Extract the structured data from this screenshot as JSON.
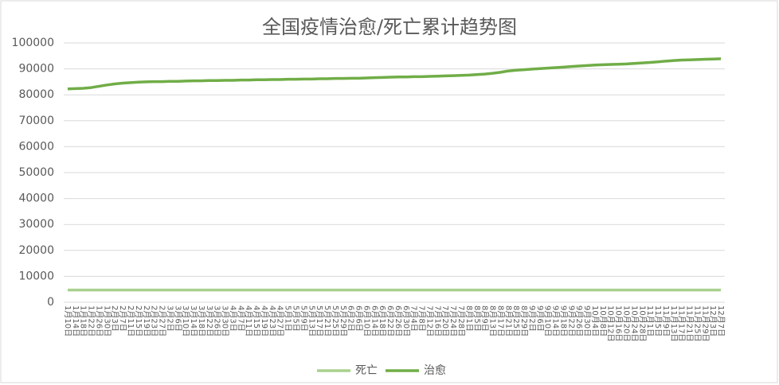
{
  "chart_data": {
    "type": "line",
    "title": "全国疫情治愈/死亡累计趋势图",
    "categories": [
      "1月10日",
      "1月14日",
      "1月18日",
      "1月22日",
      "1月26日",
      "1月30日",
      "2月3日",
      "2月7日",
      "2月11日",
      "2月15日",
      "2月19日",
      "2月23日",
      "2月27日",
      "3月2日",
      "3月6日",
      "3月10日",
      "3月14日",
      "3月18日",
      "3月22日",
      "3月26日",
      "3月30日",
      "4月3日",
      "4月7日",
      "4月11日",
      "4月15日",
      "4月19日",
      "4月23日",
      "4月27日",
      "5月1日",
      "5月5日",
      "5月9日",
      "5月13日",
      "5月17日",
      "5月21日",
      "5月25日",
      "5月29日",
      "6月2日",
      "6月6日",
      "6月10日",
      "6月14日",
      "6月18日",
      "6月22日",
      "6月26日",
      "6月30日",
      "7月4日",
      "7月8日",
      "7月12日",
      "7月16日",
      "7月20日",
      "7月24日",
      "7月28日",
      "8月1日",
      "8月5日",
      "8月9日",
      "8月13日",
      "8月17日",
      "8月21日",
      "8月25日",
      "8月29日",
      "9月2日",
      "9月6日",
      "9月10日",
      "9月14日",
      "9月18日",
      "9月22日",
      "9月26日",
      "9月30日",
      "10月4日",
      "10月8日",
      "10月12日",
      "10月16日",
      "10月20日",
      "10月24日",
      "10月28日",
      "11月1日",
      "11月5日",
      "11月9日",
      "11月13日",
      "11月17日",
      "11月21日",
      "11月25日",
      "11月29日",
      "12月3日",
      "12月7日"
    ],
    "series": [
      {
        "name": "死亡",
        "color": "#a9d18e",
        "values": [
          4700,
          4700,
          4700,
          4700,
          4700,
          4700,
          4700,
          4700,
          4700,
          4700,
          4700,
          4700,
          4700,
          4700,
          4700,
          4700,
          4700,
          4700,
          4700,
          4700,
          4700,
          4700,
          4700,
          4700,
          4700,
          4700,
          4700,
          4700,
          4700,
          4700,
          4700,
          4700,
          4700,
          4700,
          4700,
          4700,
          4700,
          4700,
          4700,
          4700,
          4700,
          4700,
          4700,
          4700,
          4700,
          4700,
          4700,
          4700,
          4700,
          4700,
          4700,
          4700,
          4700,
          4700,
          4700,
          4700,
          4700,
          4700,
          4700,
          4700,
          4700,
          4700,
          4700,
          4700,
          4700,
          4700,
          4700,
          4700,
          4700,
          4700,
          4700,
          4700,
          4700,
          4700,
          4700,
          4700,
          4700,
          4700,
          4700,
          4700,
          4700,
          4700,
          4700,
          4700
        ]
      },
      {
        "name": "治愈",
        "color": "#70ad47",
        "values": [
          82300,
          82400,
          82500,
          82800,
          83300,
          83800,
          84200,
          84500,
          84700,
          84900,
          85000,
          85100,
          85100,
          85200,
          85200,
          85300,
          85400,
          85400,
          85500,
          85500,
          85600,
          85600,
          85700,
          85700,
          85800,
          85800,
          85900,
          85900,
          86000,
          86000,
          86100,
          86100,
          86200,
          86200,
          86300,
          86300,
          86400,
          86400,
          86500,
          86600,
          86700,
          86800,
          86900,
          86900,
          87000,
          87000,
          87100,
          87200,
          87300,
          87400,
          87500,
          87600,
          87800,
          88000,
          88300,
          88700,
          89200,
          89500,
          89700,
          89900,
          90100,
          90300,
          90500,
          90700,
          90900,
          91100,
          91300,
          91500,
          91600,
          91700,
          91800,
          91900,
          92100,
          92300,
          92500,
          92700,
          93000,
          93200,
          93400,
          93500,
          93600,
          93700,
          93800,
          93900
        ]
      }
    ],
    "ylim": [
      0,
      100000
    ],
    "yticks": [
      0,
      10000,
      20000,
      30000,
      40000,
      50000,
      60000,
      70000,
      80000,
      90000,
      100000
    ],
    "grid": true,
    "legend": "bottom"
  }
}
